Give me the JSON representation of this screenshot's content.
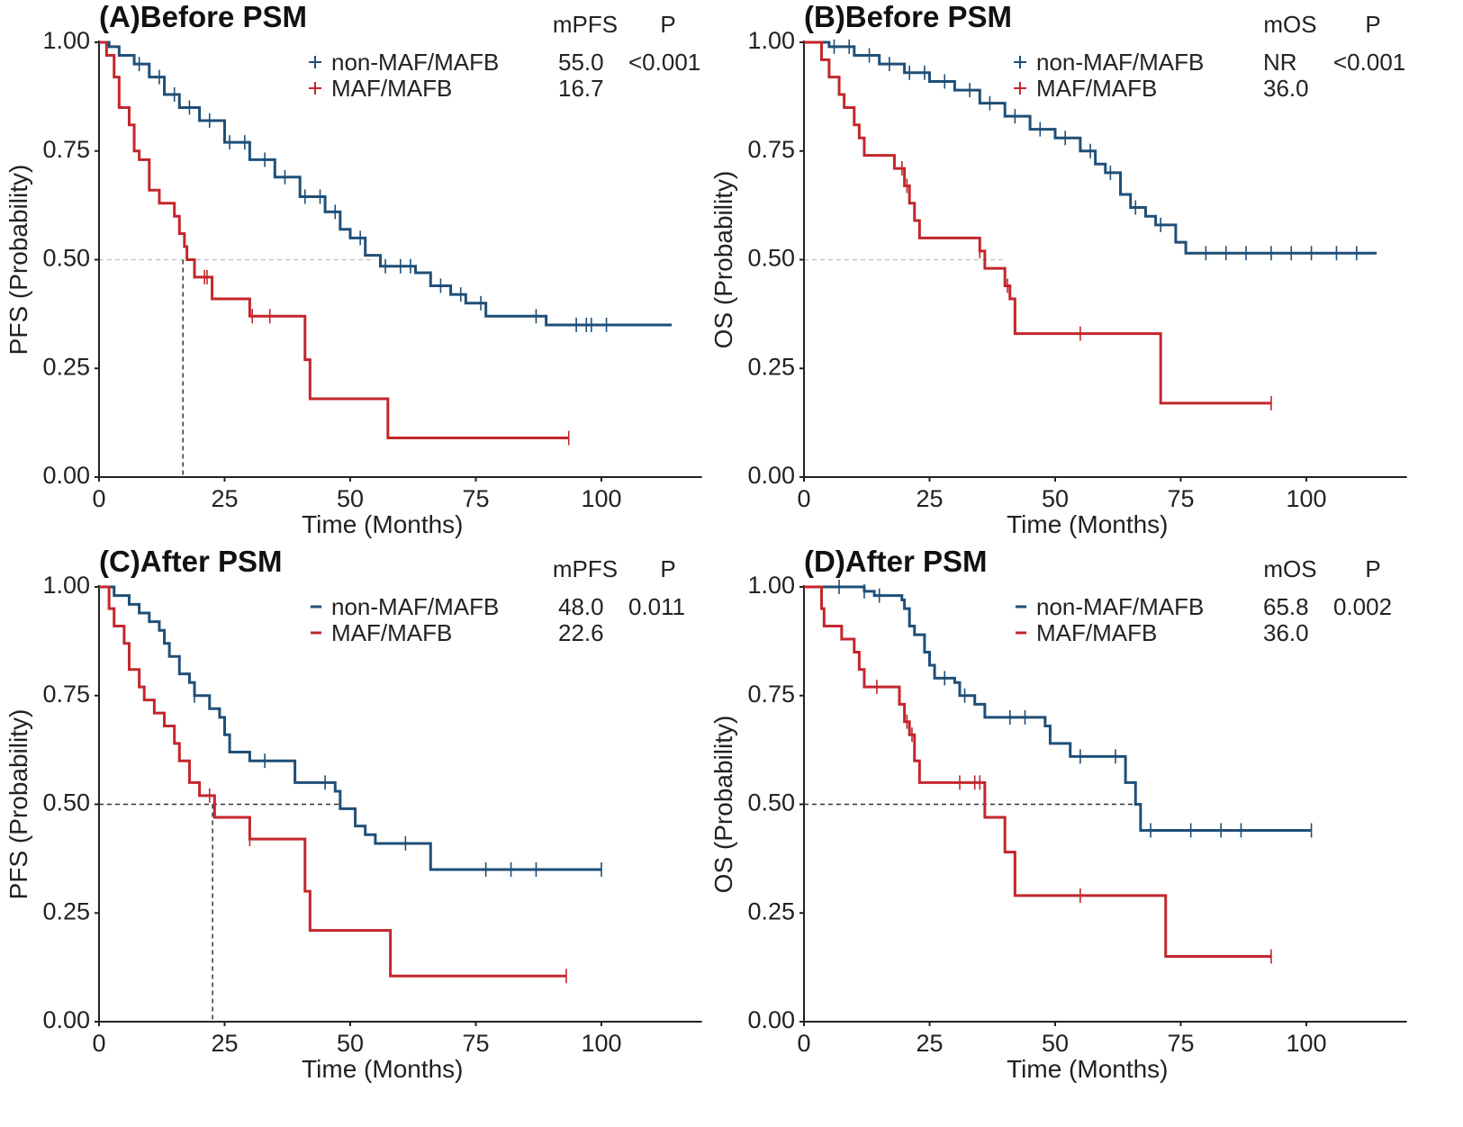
{
  "colors": {
    "non_maf": "#1f4f78",
    "maf": "#c3262c"
  },
  "chart_data": [
    {
      "type": "line",
      "panel": "A",
      "title": "(A)Before PSM",
      "xlabel": "Time (Months)",
      "ylabel": "PFS (Probability)",
      "xlim": [
        0,
        120
      ],
      "ylim": [
        0,
        1
      ],
      "xticks": [
        "0",
        "25",
        "50",
        "75",
        "100"
      ],
      "yticks": [
        "0.00",
        "0.25",
        "0.50",
        "0.75",
        "1.00"
      ],
      "legend_header": [
        "mPFS",
        "P"
      ],
      "legend_marker": "+",
      "series": [
        {
          "name": "non-MAF/MAFB",
          "median": "55.0",
          "p": "<0.001",
          "color_key": "non_maf",
          "steps": [
            [
              0,
              1
            ],
            [
              2,
              0.99
            ],
            [
              4,
              0.97
            ],
            [
              7,
              0.95
            ],
            [
              10,
              0.92
            ],
            [
              13,
              0.88
            ],
            [
              16,
              0.85
            ],
            [
              20,
              0.82
            ],
            [
              25,
              0.77
            ],
            [
              30,
              0.73
            ],
            [
              35,
              0.69
            ],
            [
              40,
              0.645
            ],
            [
              45,
              0.61
            ],
            [
              48,
              0.57
            ],
            [
              50,
              0.55
            ],
            [
              53,
              0.51
            ],
            [
              56,
              0.485
            ],
            [
              63,
              0.47
            ],
            [
              66,
              0.44
            ],
            [
              70,
              0.42
            ],
            [
              73,
              0.4
            ],
            [
              77,
              0.37
            ],
            [
              89,
              0.35
            ]
          ],
          "end": 114,
          "censors": [
            8,
            12,
            15,
            18,
            22,
            26,
            29,
            33,
            37,
            41,
            44,
            47,
            52,
            57,
            60,
            62,
            68,
            72,
            76,
            87,
            95,
            97,
            98,
            101
          ]
        },
        {
          "name": "MAF/MAFB",
          "median": "16.7",
          "p": "",
          "color_key": "maf",
          "steps": [
            [
              0,
              1
            ],
            [
              1.5,
              0.97
            ],
            [
              3,
              0.92
            ],
            [
              4,
              0.85
            ],
            [
              6,
              0.81
            ],
            [
              7,
              0.75
            ],
            [
              8,
              0.73
            ],
            [
              10,
              0.66
            ],
            [
              12,
              0.63
            ],
            [
              15,
              0.6
            ],
            [
              16,
              0.56
            ],
            [
              17,
              0.53
            ],
            [
              17.5,
              0.5
            ],
            [
              19,
              0.46
            ],
            [
              22.5,
              0.41
            ],
            [
              30,
              0.37
            ],
            [
              41,
              0.27
            ],
            [
              42,
              0.18
            ],
            [
              57.5,
              0.09
            ]
          ],
          "end": 93.5,
          "censors": [
            21,
            21.5,
            30.5,
            34,
            93.5
          ]
        }
      ],
      "median_line": {
        "h_to": 55,
        "v_at": 16.7,
        "h_color": "#c8c8c8"
      }
    },
    {
      "type": "line",
      "panel": "B",
      "title": "(B)Before PSM",
      "xlabel": "Time (Months)",
      "ylabel": "OS (Probability)",
      "xlim": [
        0,
        120
      ],
      "ylim": [
        0,
        1
      ],
      "xticks": [
        "0",
        "25",
        "50",
        "75",
        "100"
      ],
      "yticks": [
        "0.00",
        "0.25",
        "0.50",
        "0.75",
        "1.00"
      ],
      "legend_header": [
        "mOS",
        "P"
      ],
      "legend_marker": "+",
      "series": [
        {
          "name": "non-MAF/MAFB",
          "median": "NR",
          "p": "<0.001",
          "color_key": "non_maf",
          "steps": [
            [
              0,
              1
            ],
            [
              5,
              0.99
            ],
            [
              10,
              0.97
            ],
            [
              15,
              0.95
            ],
            [
              20,
              0.93
            ],
            [
              25,
              0.91
            ],
            [
              30,
              0.89
            ],
            [
              35,
              0.86
            ],
            [
              40,
              0.83
            ],
            [
              45,
              0.8
            ],
            [
              50,
              0.78
            ],
            [
              55,
              0.75
            ],
            [
              58,
              0.72
            ],
            [
              60,
              0.7
            ],
            [
              63,
              0.65
            ],
            [
              65,
              0.62
            ],
            [
              68,
              0.6
            ],
            [
              70,
              0.58
            ],
            [
              74,
              0.54
            ],
            [
              76,
              0.515
            ]
          ],
          "end": 114,
          "censors": [
            6,
            9,
            13,
            17,
            21,
            24,
            28,
            33,
            37,
            42,
            47,
            52,
            57,
            61,
            66,
            71,
            80,
            84,
            88,
            93,
            97,
            101,
            106,
            110
          ]
        },
        {
          "name": "MAF/MAFB",
          "median": "36.0",
          "p": "",
          "color_key": "maf",
          "steps": [
            [
              0,
              1
            ],
            [
              3.5,
              0.96
            ],
            [
              5,
              0.92
            ],
            [
              7,
              0.88
            ],
            [
              8,
              0.85
            ],
            [
              10,
              0.81
            ],
            [
              11,
              0.78
            ],
            [
              12,
              0.74
            ],
            [
              18,
              0.71
            ],
            [
              20,
              0.67
            ],
            [
              21,
              0.63
            ],
            [
              22,
              0.59
            ],
            [
              23,
              0.55
            ],
            [
              35,
              0.52
            ],
            [
              36,
              0.48
            ],
            [
              40,
              0.44
            ],
            [
              41,
              0.41
            ],
            [
              42,
              0.33
            ],
            [
              71,
              0.17
            ]
          ],
          "end": 93,
          "censors": [
            19.5,
            20.5,
            35,
            40.5,
            55,
            93
          ]
        }
      ],
      "median_line": {
        "h_to": 40,
        "v_at": null,
        "h_color": "#c8c8c8"
      }
    },
    {
      "type": "line",
      "panel": "C",
      "title": "(C)After PSM",
      "xlabel": "Time (Months)",
      "ylabel": "PFS (Probability)",
      "xlim": [
        0,
        120
      ],
      "ylim": [
        0,
        1
      ],
      "xticks": [
        "0",
        "25",
        "50",
        "75",
        "100"
      ],
      "yticks": [
        "0.00",
        "0.25",
        "0.50",
        "0.75",
        "1.00"
      ],
      "legend_header": [
        "mPFS",
        "P"
      ],
      "legend_marker": "-",
      "series": [
        {
          "name": "non-MAF/MAFB",
          "median": "48.0",
          "p": "0.011",
          "color_key": "non_maf",
          "steps": [
            [
              0,
              1
            ],
            [
              3,
              0.98
            ],
            [
              6,
              0.96
            ],
            [
              8,
              0.94
            ],
            [
              10,
              0.92
            ],
            [
              12,
              0.9
            ],
            [
              13,
              0.87
            ],
            [
              14,
              0.84
            ],
            [
              16,
              0.8
            ],
            [
              18,
              0.78
            ],
            [
              19,
              0.75
            ],
            [
              22,
              0.72
            ],
            [
              24,
              0.7
            ],
            [
              25,
              0.66
            ],
            [
              26,
              0.62
            ],
            [
              30,
              0.6
            ],
            [
              39,
              0.55
            ],
            [
              47,
              0.53
            ],
            [
              48,
              0.49
            ],
            [
              51,
              0.45
            ],
            [
              53,
              0.43
            ],
            [
              55,
              0.41
            ],
            [
              66,
              0.35
            ]
          ],
          "end": 100,
          "censors": [
            19,
            33,
            45,
            61,
            77,
            82,
            87,
            100
          ]
        },
        {
          "name": "MAF/MAFB",
          "median": "22.6",
          "p": "",
          "color_key": "maf",
          "steps": [
            [
              0,
              1
            ],
            [
              2,
              0.95
            ],
            [
              3,
              0.91
            ],
            [
              5,
              0.87
            ],
            [
              6,
              0.81
            ],
            [
              8,
              0.77
            ],
            [
              9,
              0.74
            ],
            [
              11,
              0.71
            ],
            [
              13,
              0.68
            ],
            [
              15,
              0.64
            ],
            [
              16,
              0.6
            ],
            [
              18,
              0.55
            ],
            [
              20,
              0.52
            ],
            [
              23,
              0.47
            ],
            [
              30,
              0.42
            ],
            [
              41,
              0.3
            ],
            [
              42,
              0.21
            ],
            [
              58,
              0.105
            ]
          ],
          "end": 93,
          "censors": [
            22,
            30,
            93
          ]
        }
      ],
      "median_line": {
        "h_to": 48,
        "v_at": 22.6,
        "h_color": "#333333"
      }
    },
    {
      "type": "line",
      "panel": "D",
      "title": "(D)After PSM",
      "xlabel": "Time (Months)",
      "ylabel": "OS (Probability)",
      "xlim": [
        0,
        120
      ],
      "ylim": [
        0,
        1
      ],
      "xticks": [
        "0",
        "25",
        "50",
        "75",
        "100"
      ],
      "yticks": [
        "0.00",
        "0.25",
        "0.50",
        "0.75",
        "1.00"
      ],
      "legend_header": [
        "mOS",
        "P"
      ],
      "legend_marker": "-",
      "series": [
        {
          "name": "non-MAF/MAFB",
          "median": "65.8",
          "p": "0.002",
          "color_key": "non_maf",
          "steps": [
            [
              0,
              1
            ],
            [
              12,
              0.99
            ],
            [
              14,
              0.98
            ],
            [
              19.5,
              0.97
            ],
            [
              20,
              0.95
            ],
            [
              21,
              0.91
            ],
            [
              22,
              0.89
            ],
            [
              24,
              0.85
            ],
            [
              25,
              0.82
            ],
            [
              26,
              0.79
            ],
            [
              30,
              0.78
            ],
            [
              31,
              0.75
            ],
            [
              34,
              0.73
            ],
            [
              36,
              0.7
            ],
            [
              48,
              0.68
            ],
            [
              49,
              0.64
            ],
            [
              53,
              0.61
            ],
            [
              64,
              0.55
            ],
            [
              66,
              0.5
            ],
            [
              67,
              0.44
            ]
          ],
          "end": 101,
          "censors": [
            7,
            12,
            15,
            28,
            32,
            41,
            44,
            55,
            62,
            69,
            77,
            83,
            87,
            101
          ]
        },
        {
          "name": "MAF/MAFB",
          "median": "36.0",
          "p": "",
          "color_key": "maf",
          "steps": [
            [
              0,
              1
            ],
            [
              3.5,
              0.95
            ],
            [
              4,
              0.91
            ],
            [
              7.5,
              0.88
            ],
            [
              10,
              0.85
            ],
            [
              11,
              0.81
            ],
            [
              12,
              0.77
            ],
            [
              19,
              0.73
            ],
            [
              20,
              0.69
            ],
            [
              21,
              0.66
            ],
            [
              22,
              0.6
            ],
            [
              23,
              0.55
            ],
            [
              36,
              0.47
            ],
            [
              40,
              0.39
            ],
            [
              42,
              0.29
            ],
            [
              72,
              0.15
            ]
          ],
          "end": 93,
          "censors": [
            14.5,
            20.5,
            21.5,
            31,
            34,
            35,
            55,
            93
          ]
        }
      ],
      "median_line": {
        "h_to": 65.8,
        "v_at": null,
        "h_color": "#333333"
      }
    }
  ]
}
